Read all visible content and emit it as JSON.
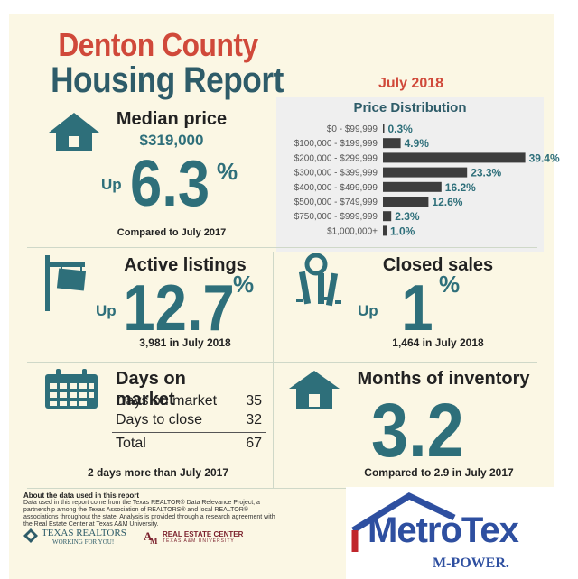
{
  "header": {
    "title_line1": "Denton County",
    "title_line2": "Housing Report",
    "month": "July 2018"
  },
  "median_price": {
    "label": "Median price",
    "value": "$319,000",
    "direction": "Up",
    "change": "6.3",
    "unit": "%",
    "compare": "Compared to July 2017"
  },
  "price_distribution": {
    "title": "Price Distribution"
  },
  "chart_data": {
    "type": "bar",
    "title": "Price Distribution",
    "orientation": "horizontal",
    "categories": [
      "$0 - $99,999",
      "$100,000 - $199,999",
      "$200,000 - $299,999",
      "$300,000 - $399,999",
      "$400,000 - $499,999",
      "$500,000 - $749,999",
      "$750,000 - $999,999",
      "$1,000,000+"
    ],
    "values": [
      0.3,
      4.9,
      39.4,
      23.3,
      16.2,
      12.6,
      2.3,
      1.0
    ],
    "value_labels": [
      "0.3%",
      "4.9%",
      "39.4%",
      "23.3%",
      "16.2%",
      "12.6%",
      "2.3%",
      "1.0%"
    ],
    "bar_color": "#3d3d3d",
    "label_color": "#2e6f7a"
  },
  "active_listings": {
    "label": "Active listings",
    "direction": "Up",
    "change": "12.7",
    "unit": "%",
    "detail": "3,981 in July 2018"
  },
  "closed_sales": {
    "label": "Closed sales",
    "direction": "Up",
    "change": "1",
    "unit": "%",
    "detail": "1,464 in July 2018"
  },
  "days_on_market": {
    "label": "Days on market",
    "rows": [
      {
        "label": "Days on market",
        "value": "35"
      },
      {
        "label": "Days to close",
        "value": "32"
      },
      {
        "label": "Total",
        "value": "67"
      }
    ],
    "compare": "2 days more than July 2017"
  },
  "months_inventory": {
    "label": "Months of inventory",
    "value": "3.2",
    "compare": "Compared to 2.9 in July 2017"
  },
  "footer": {
    "about_title": "About the data used in this report",
    "about_text": "Data used in this report come from the Texas REALTOR® Data Relevance Project, a partnership among the Texas Association of REALTORS® and local REALTOR® associations throughout the state. Analysis is provided through a research agreement with the Real Estate Center at Texas A&M University.",
    "texas_realtors": "TEXAS REALTORS",
    "texas_realtors_tag": "WORKING FOR YOU!",
    "rec_name": "REAL ESTATE CENTER",
    "rec_sub": "TEXAS A&M UNIVERSITY",
    "metrotex": "MetroTex",
    "mpower": "M-POWER."
  },
  "colors": {
    "teal": "#2e6f7a",
    "navy": "#2e5c69",
    "red": "#d0493a",
    "background": "#fbf7e4"
  }
}
